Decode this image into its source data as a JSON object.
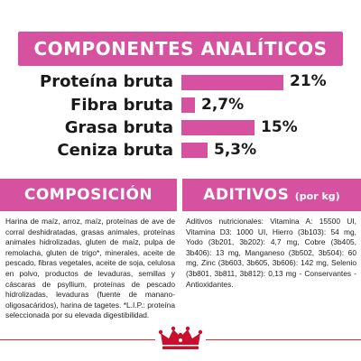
{
  "analytic": {
    "title": "COMPONENTES ANALÍTICOS",
    "rows": [
      {
        "label": "Proteína bruta",
        "value": "21%",
        "percent": 21
      },
      {
        "label": "Fibra bruta",
        "value": "2,7%",
        "percent": 2.7
      },
      {
        "label": "Grasa bruta",
        "value": "15%",
        "percent": 15
      },
      {
        "label": "Ceniza bruta",
        "value": "5,3%",
        "percent": 5.3
      }
    ]
  },
  "composition": {
    "title": "COMPOSICIÓN",
    "text": "Harina de maíz, arroz, maíz, proteínas de ave de corral deshidratadas, grasas animales, proteínas animales hidrolizadas, gluten de maíz, pulpa de remolacha, gluten de trigo*, minerales, aceite de pescado, fibras vegetales, aceite de soja, celulosa en polvo, productos de levaduras, semillas y cáscaras de psyllium, proteínas de pescado hidrolizadas, levaduras (fuente de manano-oligosacáridos), harina de tagetes. *L.I.P.: proteína seleccionada por su elevada digestibilidad."
  },
  "additives": {
    "title": "ADITIVOS",
    "title_suffix": "(por kg)",
    "text": "Aditivos nutricionales: Vitamina A: 15500 UI, Vitamina D3: 1000 UI, Hierro (3b103): 54 mg, Yodo (3b201, 3b202): 4,7 mg, Cobre (3b405, 3b406): 13 mg, Manganeso (3b502, 3b504): 60 mg, Zinc (3b603, 3b605, 3b606): 142 mg, Selenio (3b801, 3b811, 3b812): 0,13 mg - Conservantes - Antioxidantes."
  },
  "brand": {
    "logo_icon": "royal-canin-crown-icon"
  },
  "colors": {
    "accent": "#d6519f",
    "text": "#1a1a1a",
    "line": "#c0392b"
  }
}
